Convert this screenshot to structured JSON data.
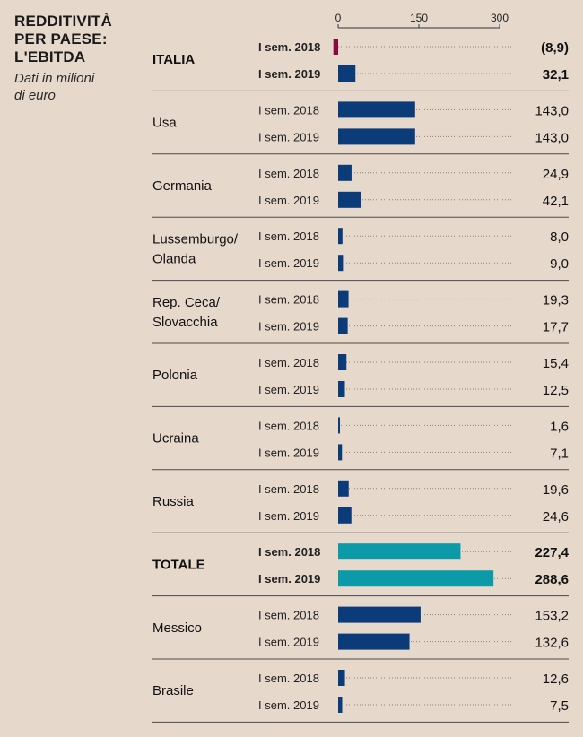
{
  "title": "REDDITIVITÀ\nPER PAESE:\nL'EBITDA",
  "subtitle": "Dati in milioni\ndi euro",
  "chart_data": {
    "type": "bar",
    "orientation": "horizontal",
    "title": "REDDITIVITÀ PER PAESE: L'EBITDA",
    "subtitle": "Dati in milioni di euro",
    "xlim": [
      0,
      300
    ],
    "ticks": [
      0,
      150,
      300
    ],
    "tick_labels": [
      "0",
      "150",
      "300"
    ],
    "series_labels": [
      "I sem. 2018",
      "I sem. 2019"
    ],
    "value_labels_note": "negative values shown in parentheses",
    "colors": {
      "default": "#0c3b7a",
      "negative": "#8b0a3b",
      "total": "#0c9aa8"
    },
    "groups": [
      {
        "name": "ITALIA",
        "bold": true,
        "values": [
          -8.9,
          32.1
        ],
        "labels": [
          "(8,9)",
          "32,1"
        ]
      },
      {
        "name": "Usa",
        "values": [
          143.0,
          143.0
        ],
        "labels": [
          "143,0",
          "143,0"
        ]
      },
      {
        "name": "Germania",
        "values": [
          24.9,
          42.1
        ],
        "labels": [
          "24,9",
          "42,1"
        ]
      },
      {
        "name": "Lussemburgo/\nOlanda",
        "values": [
          8.0,
          9.0
        ],
        "labels": [
          "8,0",
          "9,0"
        ]
      },
      {
        "name": "Rep. Ceca/\nSlovacchia",
        "values": [
          19.3,
          17.7
        ],
        "labels": [
          "19,3",
          "17,7"
        ]
      },
      {
        "name": "Polonia",
        "values": [
          15.4,
          12.5
        ],
        "labels": [
          "15,4",
          "12,5"
        ]
      },
      {
        "name": "Ucraina",
        "values": [
          1.6,
          7.1
        ],
        "labels": [
          "1,6",
          "7,1"
        ]
      },
      {
        "name": "Russia",
        "values": [
          19.6,
          24.6
        ],
        "labels": [
          "19,6",
          "24,6"
        ]
      },
      {
        "name": "TOTALE",
        "bold": true,
        "total": true,
        "values": [
          227.4,
          288.6
        ],
        "labels": [
          "227,4",
          "288,6"
        ]
      },
      {
        "name": "Messico",
        "values": [
          153.2,
          132.6
        ],
        "labels": [
          "153,2",
          "132,6"
        ]
      },
      {
        "name": "Brasile",
        "values": [
          12.6,
          7.5
        ],
        "labels": [
          "12,6",
          "7,5"
        ]
      }
    ]
  }
}
